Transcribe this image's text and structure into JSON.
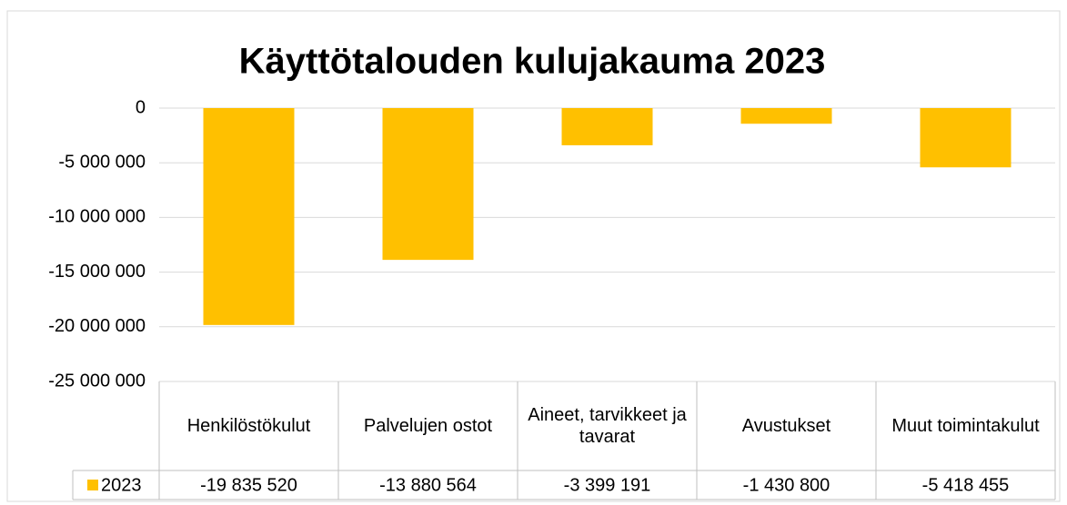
{
  "chart_data": {
    "type": "bar",
    "title": "Käyttötalouden kulujakauma 2023",
    "categories": [
      "Henkilöstökulut",
      "Palvelujen ostot",
      "Aineet, tarvikkeet ja tavarat",
      "Avustukset",
      "Muut toimintakulut"
    ],
    "series": [
      {
        "name": "2023",
        "color": "#ffc000",
        "values": [
          -19835520,
          -13880564,
          -3399191,
          -1430800,
          -5418455
        ],
        "value_labels": [
          "-19 835 520",
          "-13 880 564",
          "-3 399 191",
          "-1 430 800",
          "-5 418 455"
        ]
      }
    ],
    "ylim": [
      -25000000,
      0
    ],
    "yticks": [
      0,
      {
        "value": -5000000,
        "label": "-5 000 000"
      },
      {
        "value": -10000000,
        "label": "-10 000 000"
      },
      {
        "value": -15000000,
        "label": "-15 000 000"
      },
      {
        "value": -20000000,
        "label": "-20 000 000"
      },
      {
        "value": -25000000,
        "label": "-25 000 000"
      }
    ],
    "grid": true,
    "legend": "table"
  }
}
